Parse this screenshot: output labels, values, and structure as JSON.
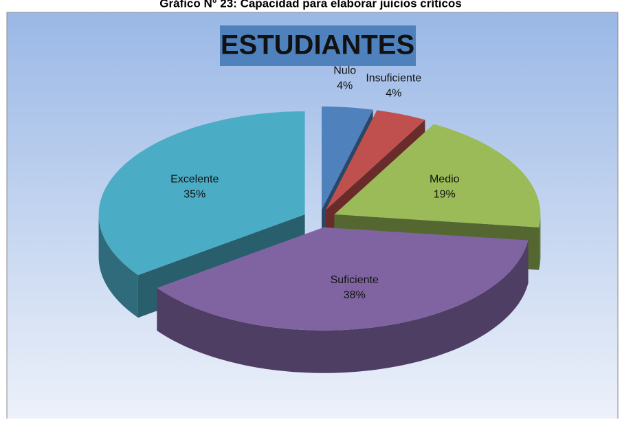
{
  "chart_data": {
    "type": "pie3d",
    "title": "Gráfico N° 23: Capacidad para elaborar juicios críticos",
    "subtitle": "ESTUDIANTES",
    "categories": [
      "Nulo",
      "Insuficiente",
      "Medio",
      "Suficiente",
      "Excelente"
    ],
    "values": [
      4,
      4,
      19,
      38,
      35
    ],
    "value_labels": [
      "4%",
      "4%",
      "19%",
      "38%",
      "35%"
    ],
    "colors": [
      "#4f81bd",
      "#c0504d",
      "#9bbb59",
      "#8064a2",
      "#4bacc6"
    ]
  }
}
